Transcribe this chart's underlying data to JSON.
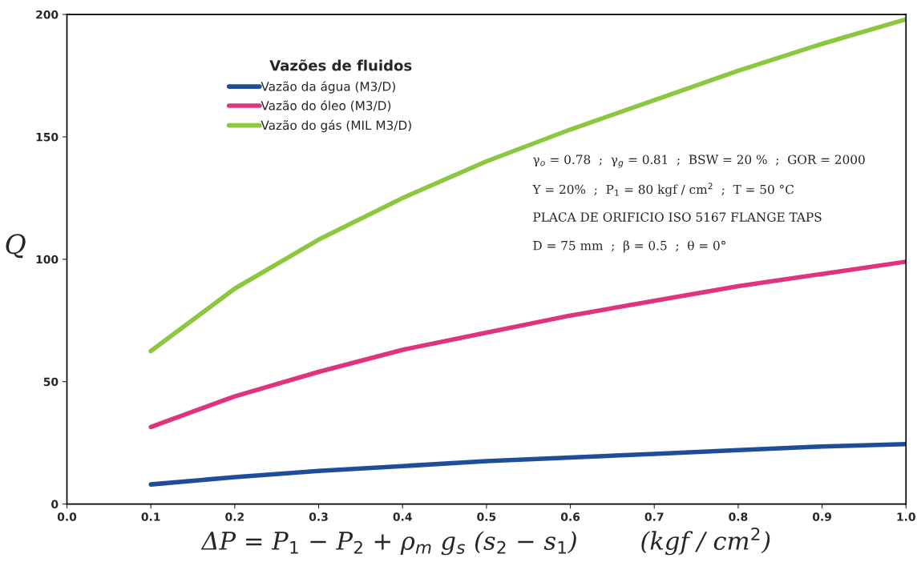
{
  "chart_data": {
    "type": "line",
    "xlabel": "ΔP = P$_{1}$ − P$_{2}$ + ρ$_{m}$ g$_{s}$ (s$_{2}$ − s$_{1}$)        (kgf / cm$^{2}$)",
    "ylabel": "Q",
    "legend_title": "Vazões de fluidos",
    "x": [
      0.1,
      0.2,
      0.3,
      0.4,
      0.5,
      0.6,
      0.7,
      0.8,
      0.9,
      1.0
    ],
    "series": [
      {
        "name": "Vazão da água (M3/D)",
        "color": "#1f4e99",
        "values": [
          8,
          11,
          13.5,
          15.5,
          17.5,
          19,
          20.5,
          22,
          23.5,
          24.5
        ]
      },
      {
        "name": "Vazão do óleo (M3/D)",
        "color": "#e0337f",
        "values": [
          31.5,
          44,
          54,
          63,
          70,
          77,
          83,
          89,
          94,
          99
        ]
      },
      {
        "name": "Vazão do gás (MIL M3/D)",
        "color": "#8dc63f",
        "values": [
          62.5,
          88,
          108,
          125,
          140,
          153,
          165,
          177,
          188,
          198
        ]
      }
    ],
    "annotations": [
      "γ$_{o}$ = 0.78  ;  γ$_{g}$ = 0.81  ;  BSW = 20 %  ;  GOR = 2000",
      "Y = 20%  ;  P$_{1}$ = 80 kgf / cm$^{2}$  ;  T = 50 °C",
      "PLACA DE ORIFICIO ISO 5167 FLANGE TAPS",
      "D = 75 mm  ;  β = 0.5  ;  θ = 0°"
    ],
    "xlim": [
      0,
      1.0
    ],
    "xticks": [
      {
        "value": 0,
        "label": "0.0"
      },
      0.1,
      0.2,
      0.3,
      0.4,
      0.5,
      0.6,
      0.7,
      0.8,
      0.9,
      {
        "value": 1.0,
        "label": "1.0"
      }
    ],
    "ylim": [
      0,
      200
    ],
    "yticks": [
      0,
      50,
      100,
      150,
      200
    ],
    "grid": false,
    "legend": "top left",
    "marker": "none",
    "line_style": "solid"
  }
}
